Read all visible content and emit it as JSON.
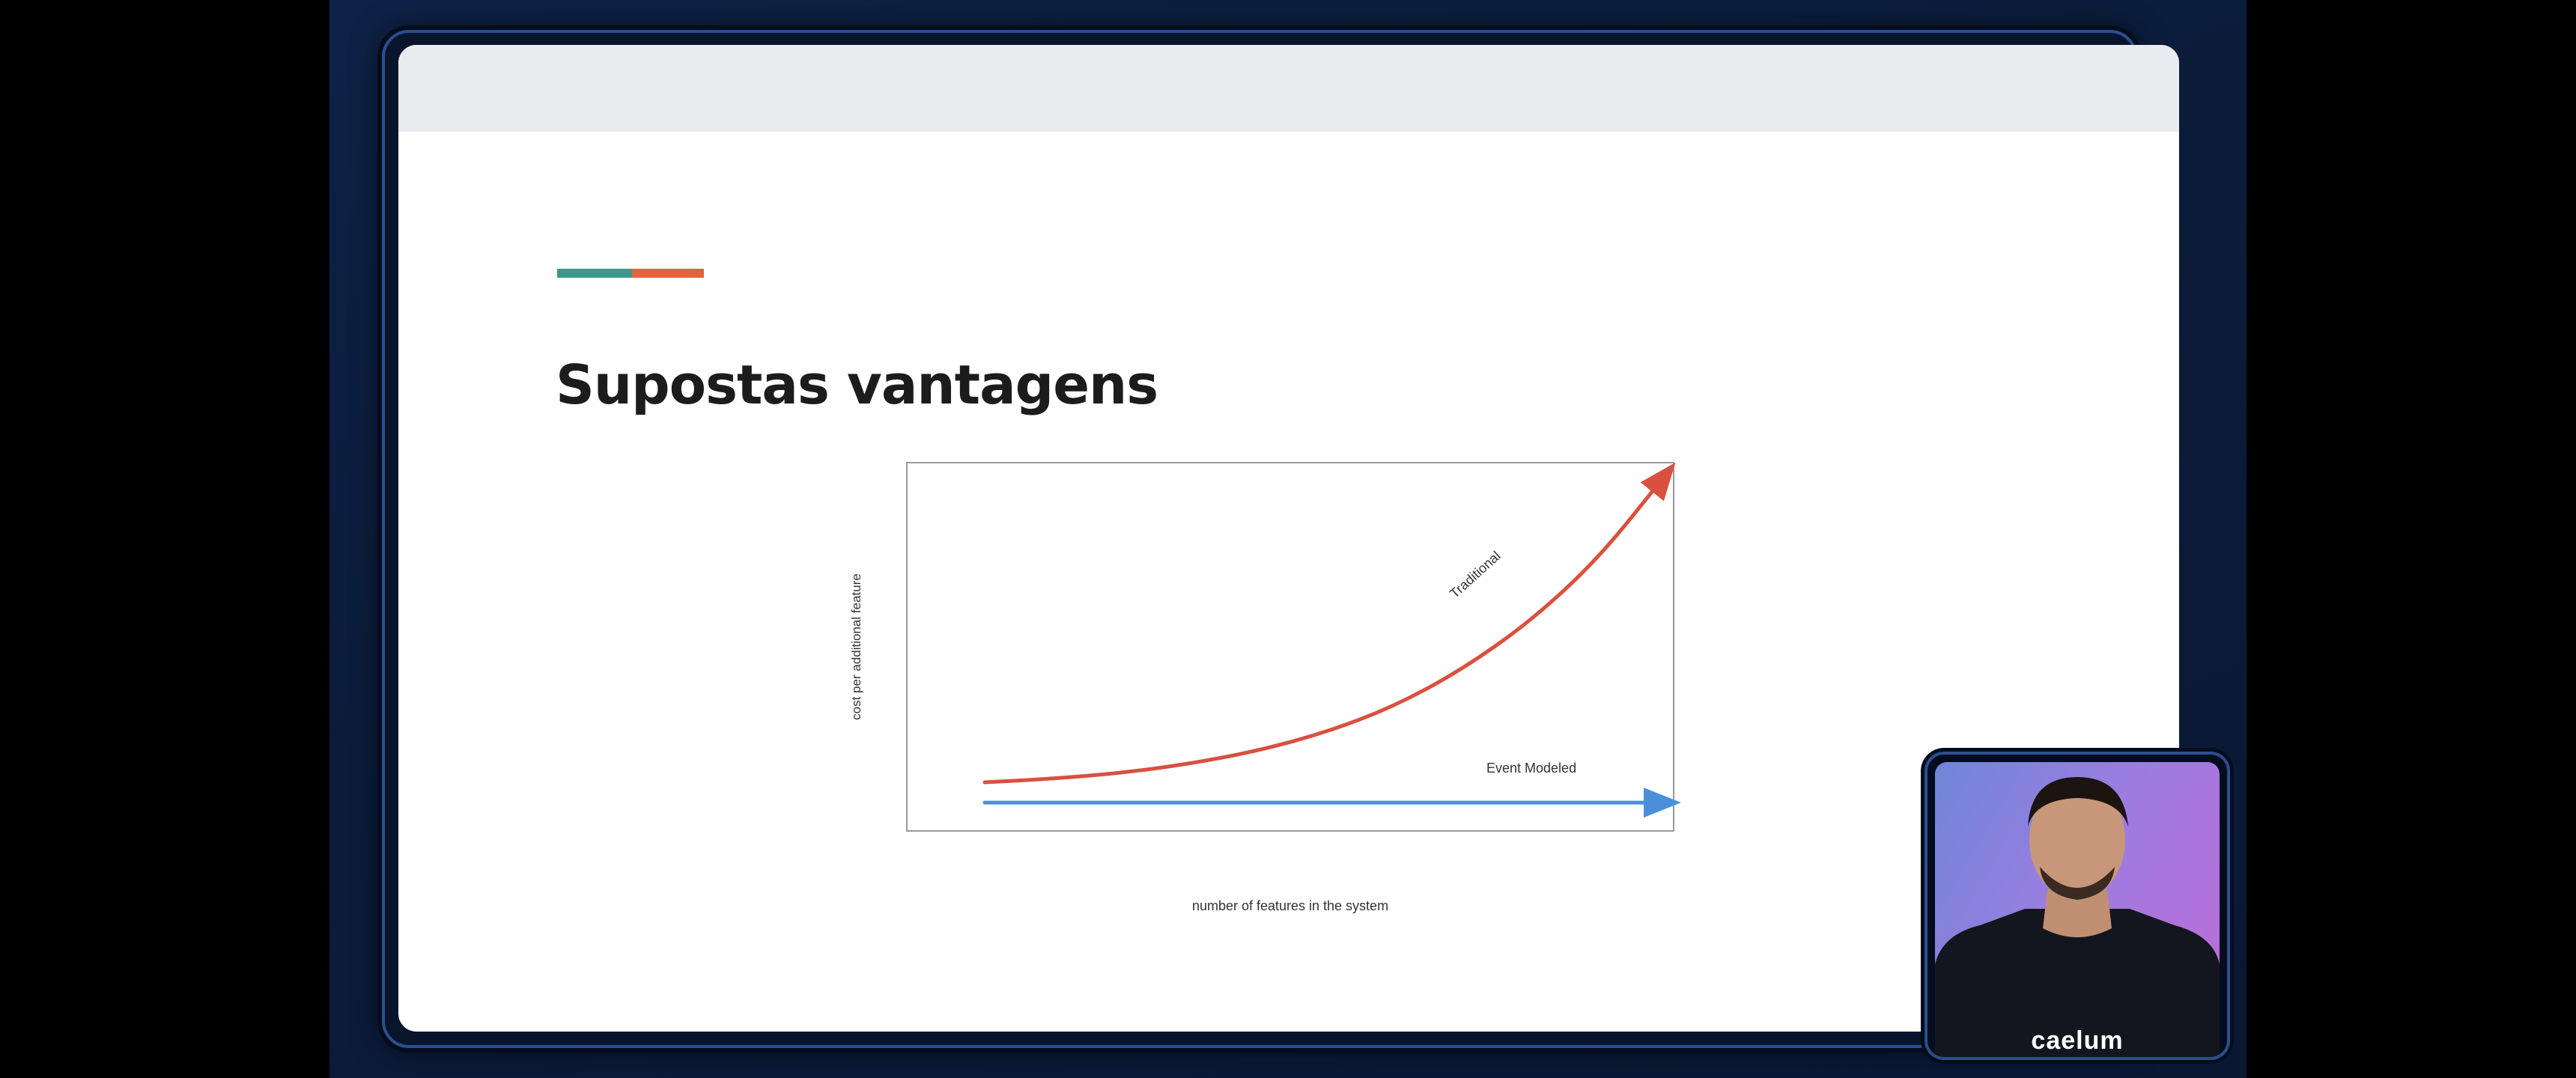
{
  "slide": {
    "title": "Supostas vantagens",
    "accent_colors": [
      "#3c978e",
      "#e2643a"
    ]
  },
  "chart_data": {
    "type": "line",
    "title": "",
    "xlabel": "number of features in the system",
    "ylabel": "cost per additional feature",
    "x": [
      0,
      1,
      2,
      3,
      4,
      5,
      6,
      7,
      8,
      9,
      10
    ],
    "xlim": [
      0,
      10
    ],
    "ylim": [
      0,
      10
    ],
    "grid": false,
    "series": [
      {
        "name": "Traditional",
        "color": "#d9503f",
        "values": [
          0.75,
          0.85,
          1.0,
          1.25,
          1.6,
          2.1,
          2.8,
          3.8,
          5.1,
          6.8,
          9.1
        ]
      },
      {
        "name": "Event Modeled",
        "color": "#4a90d9",
        "values": [
          0.2,
          0.2,
          0.2,
          0.2,
          0.2,
          0.2,
          0.2,
          0.2,
          0.2,
          0.2,
          0.2
        ]
      }
    ]
  },
  "webcam": {
    "brand": "caelum"
  }
}
